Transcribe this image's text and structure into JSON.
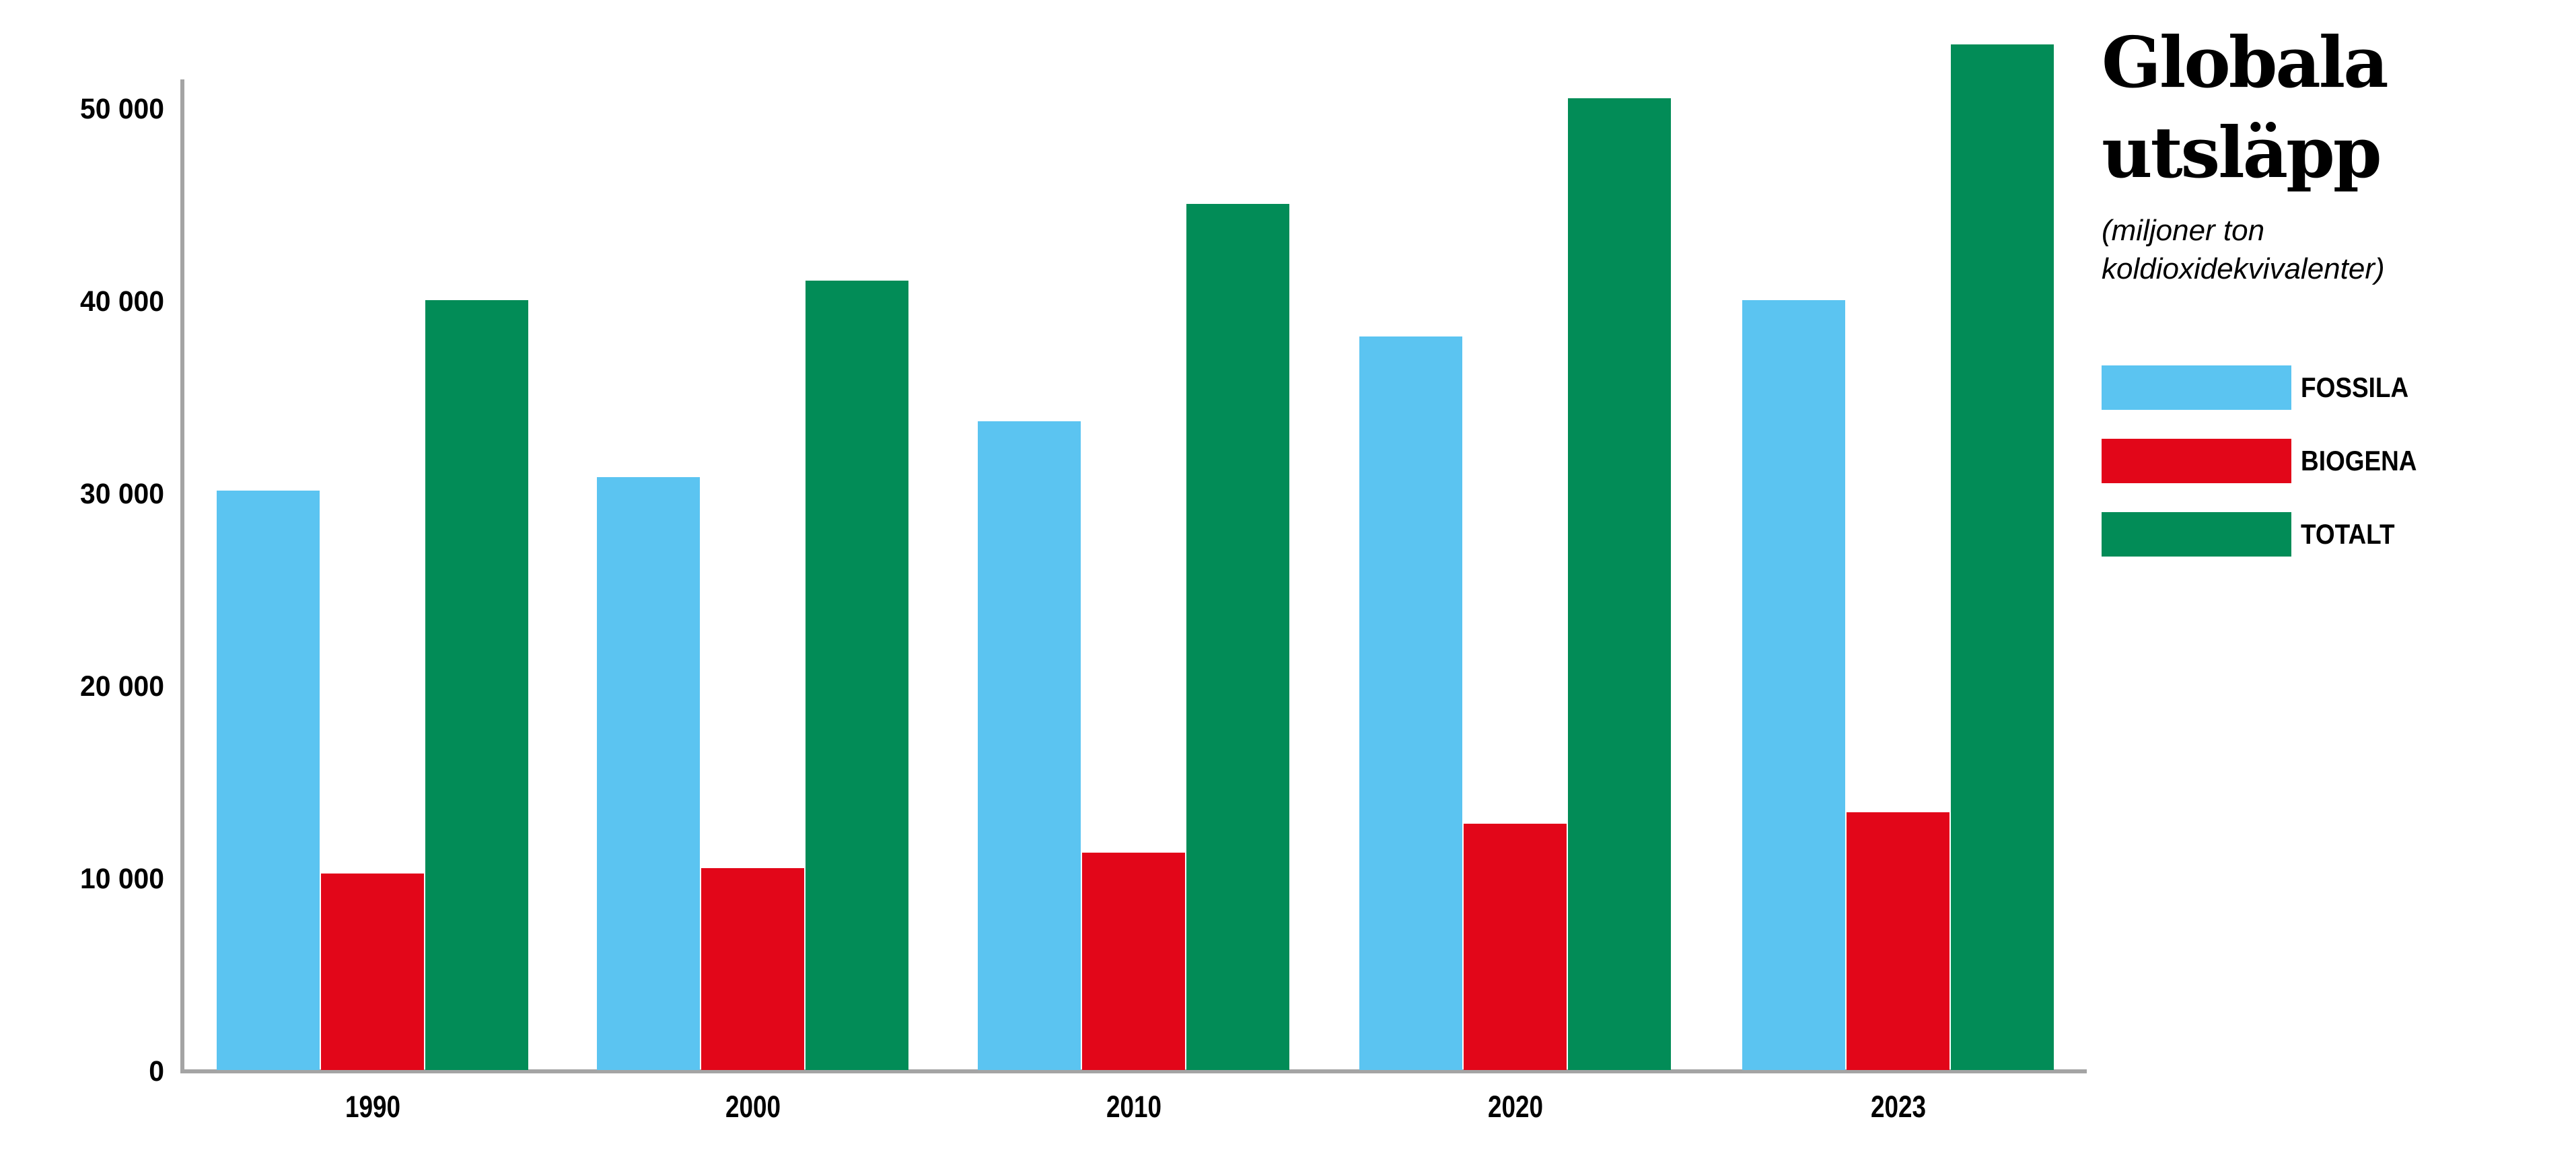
{
  "header": {
    "title": "Globala utsläpp",
    "subtitle": "(miljoner ton koldioxidekvivalenter)"
  },
  "chart_data": {
    "type": "bar",
    "title": "Globala utsläpp",
    "subtitle": "(miljoner ton koldioxidekvivalenter)",
    "unit": "miljoner ton koldioxidekvivalenter",
    "categories": [
      "1990",
      "2000",
      "2010",
      "2020",
      "2023"
    ],
    "series": [
      {
        "name": "FOSSILA",
        "color": "#5BC4F1",
        "values": [
          30100,
          30800,
          33700,
          38100,
          40000
        ]
      },
      {
        "name": "BIOGENA",
        "color": "#E20619",
        "values": [
          10200,
          10500,
          11300,
          12800,
          13400
        ]
      },
      {
        "name": "TOTALT",
        "color": "#028C57",
        "values": [
          40000,
          41000,
          45000,
          50500,
          53300
        ]
      }
    ],
    "yticks": [
      {
        "label": "0",
        "value": 0
      },
      {
        "label": "10 000",
        "value": 10000
      },
      {
        "label": "20 000",
        "value": 20000
      },
      {
        "label": "30 000",
        "value": 30000
      },
      {
        "label": "40 000",
        "value": 40000
      },
      {
        "label": "50 000",
        "value": 50000
      }
    ],
    "ylim": [
      0,
      53300
    ],
    "grid": false,
    "legend_position": "right",
    "axis_color": "#a4a4a4"
  }
}
